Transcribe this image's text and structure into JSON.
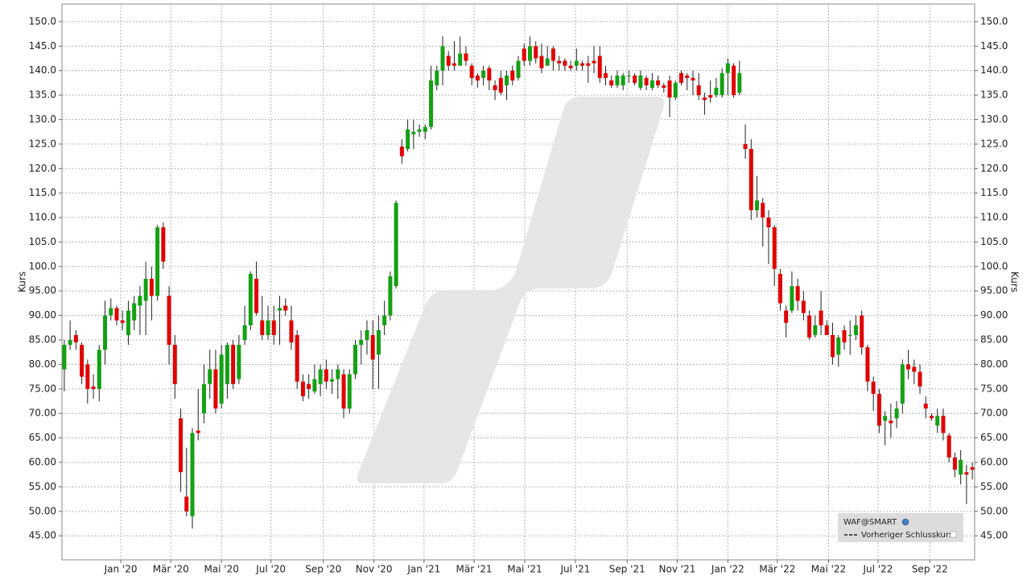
{
  "chart_data": {
    "type": "candlestick",
    "y_label": "Kurs",
    "up_color": "#14a014",
    "down_color": "#e00000",
    "grid": true,
    "legend": {
      "title": "WAF@SMART",
      "items": [
        "Vorheriger Schlusskurs"
      ],
      "position": "lower right"
    },
    "categories": [
      null,
      null,
      null,
      null,
      null,
      null,
      null,
      null,
      null,
      null,
      null,
      null,
      null,
      null,
      null,
      null,
      null,
      null,
      null,
      null,
      null,
      null,
      null,
      null,
      null,
      null,
      null,
      null,
      null,
      null,
      null,
      null,
      null,
      null,
      null,
      null,
      null,
      null,
      null,
      null,
      null,
      null,
      null,
      null,
      null,
      null,
      null,
      null,
      null,
      null,
      null,
      null,
      null,
      null,
      null,
      null,
      null,
      null,
      null,
      null,
      null,
      null,
      null,
      null,
      null,
      null,
      null,
      null,
      null,
      null,
      null,
      null,
      null,
      null,
      null,
      null,
      null,
      null,
      null,
      null,
      null,
      null,
      null,
      null,
      null,
      null,
      null,
      null,
      null,
      null,
      null,
      null,
      null,
      null,
      null,
      null,
      null,
      null,
      null,
      null,
      null,
      null,
      null,
      null,
      null,
      null,
      null,
      null,
      null,
      null,
      null,
      null,
      null,
      null,
      null,
      null,
      null,
      null,
      null,
      null,
      null,
      null,
      null,
      null,
      null,
      null,
      null,
      null,
      null,
      null,
      null,
      null,
      null,
      null,
      null,
      null,
      null,
      null,
      null,
      null,
      null,
      null,
      null,
      null,
      null,
      null,
      null,
      null,
      null,
      null,
      null,
      null,
      null,
      null,
      null,
      null,
      null
    ],
    "open": [
      79,
      84,
      86,
      84,
      80,
      75.5,
      75,
      83,
      90,
      91.5,
      89,
      86,
      89,
      92,
      93,
      97.5,
      94,
      108,
      94,
      84,
      69,
      53,
      49,
      66.5,
      70,
      76,
      79,
      72,
      76,
      84,
      77,
      85,
      88,
      97.5,
      89,
      86,
      89,
      91,
      92,
      89,
      86,
      76.5,
      76,
      74.5,
      76,
      79,
      76.5,
      77,
      78,
      71,
      78,
      84,
      85,
      86,
      82,
      88,
      90,
      96,
      124.5,
      124,
      127,
      127.5,
      127.5,
      128.5,
      137,
      140,
      143,
      141.5,
      141,
      143.5,
      141,
      139,
      138.5,
      140.5,
      137,
      138.5,
      137,
      140,
      138.5,
      144.5,
      142,
      145,
      143,
      141,
      144.5,
      142,
      142,
      141,
      141,
      141.5,
      141.5,
      142,
      143,
      139.5,
      138,
      137,
      137,
      139,
      139,
      136.5,
      138.5,
      136.5,
      138,
      137,
      138,
      134.5,
      139.5,
      139,
      138.5,
      137,
      134.5,
      135,
      135,
      135,
      139.5,
      141,
      135.5,
      125,
      124,
      111.5,
      113,
      110,
      108,
      98.5,
      91,
      91,
      96,
      93,
      90,
      86,
      91,
      88,
      86,
      82,
      87,
      86,
      86,
      90,
      83.5,
      76.5,
      74,
      68.5,
      68.5,
      69,
      72,
      80,
      79.5,
      78.5,
      72,
      69.5,
      67.5,
      69.5,
      65.5,
      61,
      57.5,
      58,
      59
    ],
    "high": [
      85,
      89,
      87,
      84.5,
      81,
      78,
      84,
      93,
      93.5,
      92,
      91,
      93,
      94,
      96,
      101,
      100,
      108.5,
      109,
      96,
      86,
      71,
      63,
      67,
      75,
      80,
      83,
      83,
      84,
      84.5,
      85,
      86,
      92,
      99,
      101,
      94,
      92,
      92,
      94,
      93.5,
      92,
      87,
      78,
      78,
      80,
      80,
      81,
      79,
      80,
      79,
      79,
      85,
      87,
      89,
      89,
      90,
      93,
      99,
      113.5,
      126,
      130,
      130,
      129,
      129,
      141,
      141,
      147,
      144,
      146,
      147,
      145,
      141.5,
      139.5,
      141,
      141,
      138,
      140,
      140,
      141,
      143,
      145.5,
      147,
      146,
      145.5,
      145,
      145,
      143,
      142.5,
      142,
      144.5,
      142,
      143,
      145,
      145,
      141,
      139,
      140,
      139.5,
      140,
      139.5,
      140,
      139,
      139.5,
      139,
      137.5,
      139,
      138,
      140,
      139.5,
      140,
      139.5,
      135.5,
      138,
      138.5,
      140.5,
      142.5,
      141.5,
      142,
      129,
      126,
      118.5,
      114,
      111.5,
      108.5,
      99.5,
      92,
      99,
      97.5,
      95,
      91,
      90,
      95,
      89,
      88.5,
      86,
      88,
      89,
      90,
      91,
      84,
      77.5,
      75,
      70.5,
      72,
      72.5,
      81,
      83,
      81,
      80,
      73.5,
      70,
      71,
      71,
      66,
      62,
      62.5,
      59.5,
      60
    ],
    "low": [
      74.5,
      83,
      83,
      76,
      72,
      73,
      72.5,
      80,
      89,
      88,
      87,
      84,
      87,
      86,
      86,
      89,
      93,
      99.5,
      80,
      73,
      54,
      49,
      46.5,
      64.5,
      68,
      73,
      70,
      71,
      73,
      75,
      76,
      84,
      87,
      90,
      85,
      85,
      84,
      84,
      90,
      83,
      75,
      72.5,
      73,
      74,
      73.5,
      75,
      74,
      73,
      69,
      70,
      77,
      80,
      82,
      75,
      75,
      86,
      89,
      95.5,
      121,
      123.5,
      124,
      126.5,
      126,
      128,
      136,
      137,
      140,
      140,
      141,
      141,
      137,
      136.5,
      137,
      136,
      134,
      135,
      134,
      137,
      138,
      141,
      141,
      141.5,
      139.5,
      141,
      140,
      140,
      140,
      140,
      140,
      140,
      137.5,
      139.5,
      137.5,
      137,
      136.5,
      136.5,
      136,
      137.5,
      137,
      136,
      136,
      136,
      136.5,
      135.5,
      130.5,
      134,
      137,
      136,
      135,
      134,
      131,
      133.5,
      134.5,
      134.5,
      135,
      134.5,
      135,
      122,
      109.5,
      110,
      104,
      100.5,
      96,
      91,
      85.5,
      90.5,
      91,
      89,
      85,
      85.5,
      86,
      86,
      80,
      79.5,
      83,
      82,
      85,
      82,
      74.5,
      70.5,
      66,
      63.5,
      65,
      67,
      70,
      77,
      76,
      74,
      69,
      68.5,
      66,
      64.5,
      60,
      57,
      55.5,
      51.5,
      56.5
    ],
    "close": [
      84,
      85,
      84.5,
      77.5,
      75,
      75,
      83,
      90,
      91.5,
      89,
      88.5,
      91,
      92.5,
      94,
      97.5,
      94,
      108,
      101,
      84,
      76,
      58,
      50,
      66,
      66,
      76,
      79,
      71,
      82,
      84,
      76,
      84,
      88,
      98.5,
      90.5,
      86,
      89,
      86,
      91.5,
      91,
      84.5,
      76.5,
      73.5,
      75,
      77,
      79,
      76.5,
      77,
      79,
      71,
      78,
      84,
      85,
      87,
      81,
      87,
      90,
      98,
      113,
      122.5,
      128,
      127.5,
      128,
      128.5,
      138,
      140,
      145,
      141,
      141,
      143.5,
      142,
      138.5,
      138,
      140,
      138,
      136,
      135.5,
      139,
      138,
      142,
      142,
      145,
      142.5,
      140.5,
      142.5,
      142,
      141.5,
      141,
      140.5,
      142,
      141,
      141,
      141.5,
      138.5,
      138.5,
      137,
      139,
      139,
      139,
      137.5,
      139,
      137,
      138,
      137,
      136.5,
      134.5,
      137.5,
      137.5,
      138.5,
      138,
      135,
      134,
      134.5,
      136.5,
      139.5,
      141.5,
      135,
      139.5,
      124,
      111.5,
      113.5,
      110,
      108,
      99.5,
      92.5,
      88.5,
      96,
      93,
      90.5,
      85.5,
      88,
      88,
      86,
      81.5,
      85.5,
      84.5,
      86,
      88,
      83.5,
      76.5,
      74,
      67.5,
      69.5,
      68,
      71,
      80,
      79,
      78.5,
      75.5,
      71,
      69,
      69.5,
      66,
      61,
      58.5,
      60.5,
      57.5,
      58.5
    ],
    "xlim": [
      -0.4,
      156.4
    ],
    "xticks": [
      {
        "value": 9.7,
        "label": "Jan '20"
      },
      {
        "value": 18.3,
        "label": "Mär '20"
      },
      {
        "value": 27.0,
        "label": "Mai '20"
      },
      {
        "value": 35.5,
        "label": "Jul '20"
      },
      {
        "value": 44.5,
        "label": "Sep '20"
      },
      {
        "value": 53.2,
        "label": "Nov '20"
      },
      {
        "value": 61.8,
        "label": "Jan '21"
      },
      {
        "value": 70.4,
        "label": "Mär '21"
      },
      {
        "value": 79.1,
        "label": "Mai '21"
      },
      {
        "value": 87.8,
        "label": "Jul '21"
      },
      {
        "value": 96.7,
        "label": "Sep '21"
      },
      {
        "value": 105.3,
        "label": "Nov '21"
      },
      {
        "value": 114.0,
        "label": "Jan '22"
      },
      {
        "value": 122.5,
        "label": "Mär '22"
      },
      {
        "value": 131.3,
        "label": "Mai '22"
      },
      {
        "value": 139.8,
        "label": "Jul '22"
      },
      {
        "value": 148.7,
        "label": "Sep '22"
      }
    ],
    "ylim": [
      40.1,
      153.6
    ],
    "yticks": [
      {
        "value": 45,
        "label": "45.00"
      },
      {
        "value": 50,
        "label": "50.00"
      },
      {
        "value": 55,
        "label": "55.00"
      },
      {
        "value": 60,
        "label": "60.00"
      },
      {
        "value": 65,
        "label": "65.00"
      },
      {
        "value": 70,
        "label": "70.00"
      },
      {
        "value": 75,
        "label": "75.00"
      },
      {
        "value": 80,
        "label": "80.00"
      },
      {
        "value": 85,
        "label": "85.00"
      },
      {
        "value": 90,
        "label": "90.00"
      },
      {
        "value": 95,
        "label": "95.00"
      },
      {
        "value": 100,
        "label": "100.0"
      },
      {
        "value": 105,
        "label": "105.0"
      },
      {
        "value": 110,
        "label": "110.0"
      },
      {
        "value": 115,
        "label": "115.0"
      },
      {
        "value": 120,
        "label": "120.0"
      },
      {
        "value": 125,
        "label": "125.0"
      },
      {
        "value": 130,
        "label": "130.0"
      },
      {
        "value": 135,
        "label": "135.0"
      },
      {
        "value": 140,
        "label": "140.0"
      },
      {
        "value": 145,
        "label": "145.0"
      },
      {
        "value": 150,
        "label": "150.0"
      }
    ]
  }
}
